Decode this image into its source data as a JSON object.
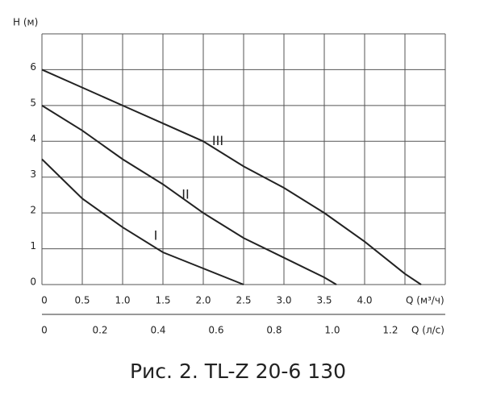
{
  "chart_data": {
    "type": "line",
    "caption": "Рис. 2. TL-Z 20-6 130",
    "y_label": "H (м)",
    "x_label": "Q (м³/ч)",
    "x2_label": "Q (л/с)",
    "xlim": [
      0,
      5
    ],
    "ylim": [
      0,
      7
    ],
    "x2lim": [
      0,
      1.389
    ],
    "xticks": [
      0,
      0.5,
      {
        "value": 1,
        "label": "1.0"
      },
      1.5,
      {
        "value": 2,
        "label": "2.0"
      },
      2.5,
      {
        "value": 3,
        "label": "3.0"
      },
      3.5,
      {
        "value": 4,
        "label": "4.0"
      }
    ],
    "xgrid": [
      0,
      0.5,
      1,
      1.5,
      2,
      2.5,
      3,
      3.5,
      4,
      4.5,
      5
    ],
    "yticks": [
      0,
      1,
      2,
      3,
      4,
      5,
      6
    ],
    "ygrid": [
      0,
      1,
      2,
      3,
      4,
      5,
      6,
      7
    ],
    "x2ticks": [
      0,
      0.2,
      0.4,
      0.6,
      0.8,
      {
        "value": 1,
        "label": "1.0"
      },
      1.2
    ],
    "grid": true,
    "series": [
      {
        "name": "I",
        "color": "#222222",
        "x": [
          0,
          0.5,
          1,
          1.5,
          2,
          2.5
        ],
        "values": [
          3.5,
          2.4,
          1.6,
          0.9,
          0.45,
          0
        ]
      },
      {
        "name": "II",
        "color": "#222222",
        "x": [
          0,
          0.5,
          1,
          1.5,
          2,
          2.5,
          3,
          3.5,
          3.65
        ],
        "values": [
          5,
          4.3,
          3.5,
          2.8,
          2.0,
          1.3,
          0.75,
          0.2,
          0
        ]
      },
      {
        "name": "III",
        "color": "#222222",
        "x": [
          0,
          0.5,
          1,
          1.5,
          2,
          2.5,
          3,
          3.5,
          4,
          4.5,
          4.7
        ],
        "values": [
          6,
          5.5,
          5.0,
          4.5,
          4.0,
          3.3,
          2.7,
          2.0,
          1.2,
          0.3,
          0
        ]
      }
    ],
    "annotations": [
      {
        "text": "I",
        "x": 1.41,
        "y": 1.35
      },
      {
        "text": "II",
        "x": 1.78,
        "y": 2.5
      },
      {
        "text": "III",
        "x": 2.18,
        "y": 4.0
      }
    ]
  }
}
